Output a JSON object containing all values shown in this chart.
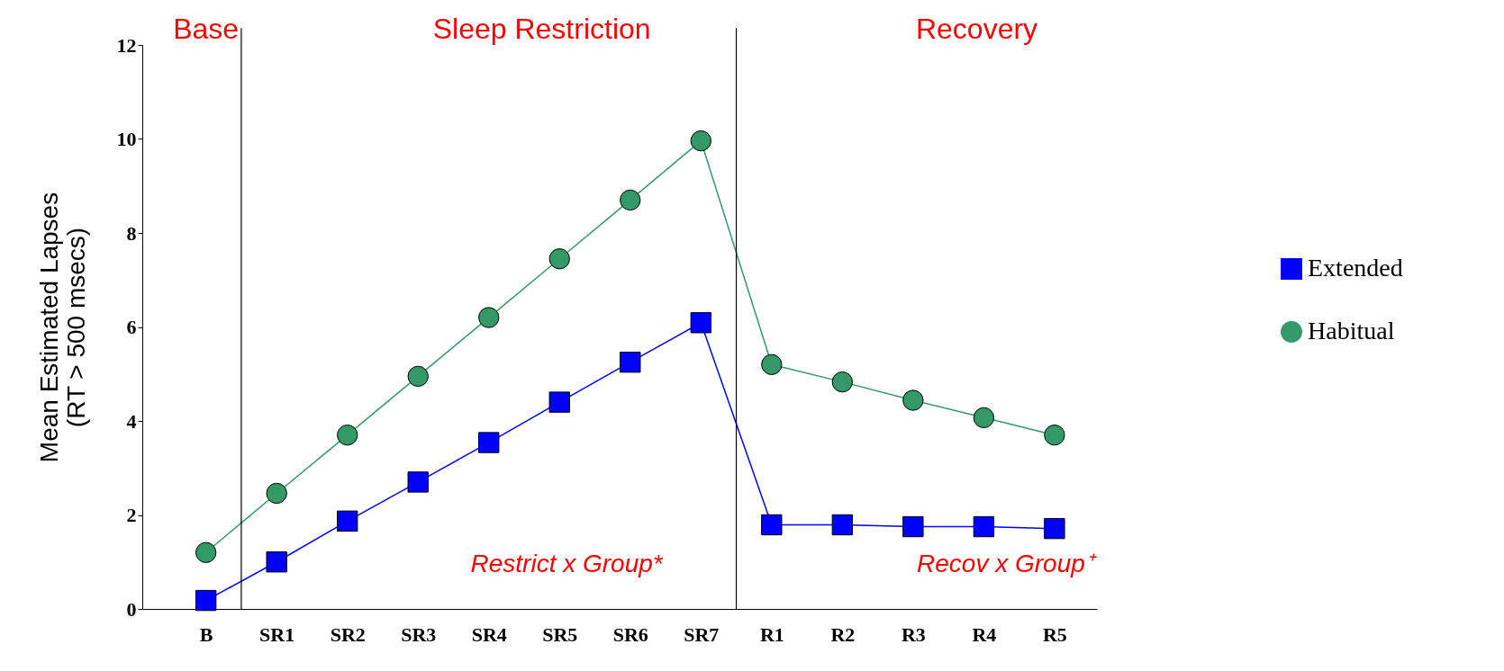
{
  "chart_data": {
    "type": "line",
    "ylabel": "Mean Estimated Lapses\n(RT > 500 msecs)",
    "categories": [
      "B",
      "SR1",
      "SR2",
      "SR3",
      "SR4",
      "SR5",
      "SR6",
      "SR7",
      "R1",
      "R2",
      "R3",
      "R4",
      "R5"
    ],
    "series": [
      {
        "name": "Extended",
        "color": "#0000ff",
        "marker": "square",
        "values": [
          0.18,
          1.0,
          1.87,
          2.7,
          3.54,
          4.4,
          5.25,
          6.09,
          1.79,
          1.79,
          1.75,
          1.75,
          1.71
        ]
      },
      {
        "name": "Habitual",
        "color": "#339966",
        "marker": "circle",
        "values": [
          1.2,
          2.46,
          3.7,
          4.95,
          6.2,
          7.45,
          8.7,
          9.96,
          5.2,
          4.83,
          4.44,
          4.07,
          3.7
        ]
      }
    ],
    "ylim": [
      0,
      12
    ],
    "yticks": [
      0,
      2,
      4,
      6,
      8,
      10,
      12
    ],
    "grid": false,
    "legend": "right",
    "annotations": [
      "Base",
      "Sleep Restriction",
      "Recovery",
      "Restrict x Group*",
      "Recov x Group⁺"
    ]
  }
}
